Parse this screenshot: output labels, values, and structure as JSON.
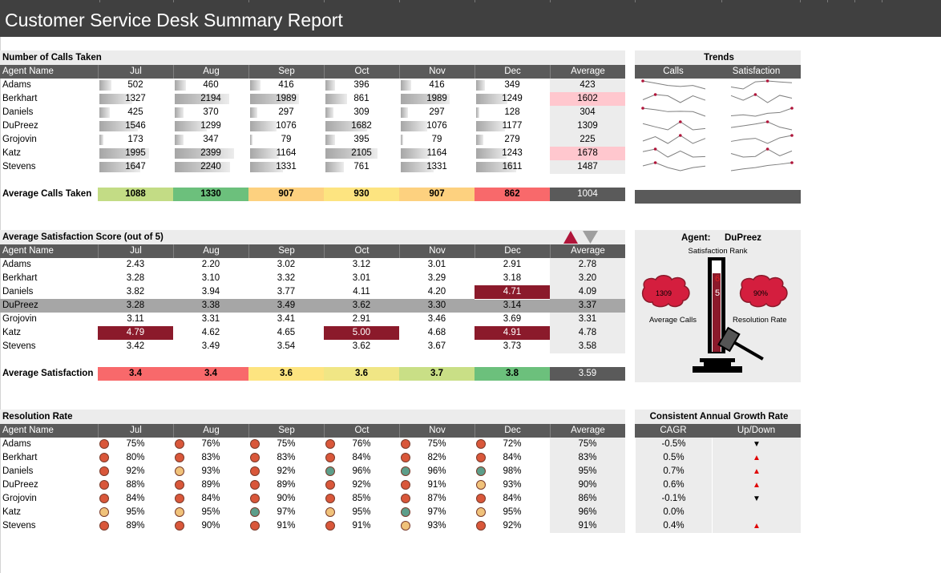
{
  "title": "Customer Service Desk Summary Report",
  "colors": {
    "title_bg": "#404040",
    "header_bg": "#5a5a5a",
    "section_bg": "#ececec",
    "highlight": "#ffc7ce",
    "dark_red": "#8b1a2b",
    "grey_row": "#a6a6a6"
  },
  "agent_header": "Agent Name",
  "months": [
    "Jul",
    "Aug",
    "Sep",
    "Oct",
    "Nov",
    "Dec"
  ],
  "average_label": "Average",
  "agents": [
    "Adams",
    "Berkhart",
    "Daniels",
    "DuPreez",
    "Grojovin",
    "Katz",
    "Stevens"
  ],
  "calls": {
    "title": "Number of Calls Taken",
    "rows": [
      {
        "values": [
          "502",
          "460",
          "416",
          "396",
          "416",
          "349"
        ],
        "avg": "423",
        "hl": false
      },
      {
        "values": [
          "1327",
          "2194",
          "1989",
          "861",
          "1989",
          "1249"
        ],
        "avg": "1602",
        "hl": true
      },
      {
        "values": [
          "425",
          "370",
          "297",
          "309",
          "297",
          "128"
        ],
        "avg": "304",
        "hl": false
      },
      {
        "values": [
          "1546",
          "1299",
          "1076",
          "1682",
          "1076",
          "1177"
        ],
        "avg": "1309",
        "hl": false
      },
      {
        "values": [
          "173",
          "347",
          "79",
          "395",
          "79",
          "279"
        ],
        "avg": "225",
        "hl": false
      },
      {
        "values": [
          "1995",
          "2399",
          "1164",
          "2105",
          "1164",
          "1243"
        ],
        "avg": "1678",
        "hl": true
      },
      {
        "values": [
          "1647",
          "2240",
          "1331",
          "761",
          "1331",
          "1611"
        ],
        "avg": "1487",
        "hl": false
      }
    ],
    "avg_label": "Average Calls Taken",
    "avg_values": [
      "1088",
      "1330",
      "907",
      "930",
      "907",
      "862"
    ],
    "avg_colors": [
      "#c3dc85",
      "#6cc07c",
      "#fdd17f",
      "#fde480",
      "#fdd17f",
      "#f8696b"
    ],
    "avg_total": "1004"
  },
  "trends": {
    "title": "Trends",
    "col_calls": "Calls",
    "col_satisfaction": "Satisfaction"
  },
  "satisfaction": {
    "title": "Average Satisfaction Score (out of 5)",
    "rows": [
      {
        "values": [
          "2.43",
          "2.20",
          "3.02",
          "3.12",
          "3.01",
          "2.91"
        ],
        "avg": "2.78"
      },
      {
        "values": [
          "3.28",
          "3.10",
          "3.32",
          "3.01",
          "3.29",
          "3.18"
        ],
        "avg": "3.20"
      },
      {
        "values": [
          "3.82",
          "3.94",
          "3.77",
          "4.11",
          "4.20",
          "4.71"
        ],
        "avg": "4.09"
      },
      {
        "values": [
          "3.28",
          "3.38",
          "3.49",
          "3.62",
          "3.30",
          "3.14"
        ],
        "avg": "3.37"
      },
      {
        "values": [
          "3.11",
          "3.31",
          "3.41",
          "2.91",
          "3.46",
          "3.69"
        ],
        "avg": "3.31"
      },
      {
        "values": [
          "4.79",
          "4.62",
          "4.65",
          "5.00",
          "4.68",
          "4.91"
        ],
        "avg": "4.78"
      },
      {
        "values": [
          "3.42",
          "3.49",
          "3.54",
          "3.62",
          "3.67",
          "3.73"
        ],
        "avg": "3.58"
      }
    ],
    "avg_label": "Average Satisfaction",
    "avg_values": [
      "3.4",
      "3.4",
      "3.6",
      "3.6",
      "3.7",
      "3.8"
    ],
    "avg_colors": [
      "#f8696b",
      "#f8696b",
      "#fde480",
      "#f0e685",
      "#c9df86",
      "#6cc07c"
    ],
    "avg_total": "3.59"
  },
  "agent_panel": {
    "agent_label": "Agent:",
    "agent_name": "DuPreez",
    "rank_label": "Satisfaction Rank",
    "rank_top": "6",
    "rank_bottom": "5",
    "calls_value": "1309",
    "calls_label": "Average Calls",
    "resolution_value": "90%",
    "resolution_label": "Resolution Rate"
  },
  "resolution": {
    "title": "Resolution Rate",
    "rows": [
      {
        "values": [
          "75%",
          "76%",
          "75%",
          "76%",
          "75%",
          "72%"
        ],
        "avg": "75%"
      },
      {
        "values": [
          "80%",
          "83%",
          "83%",
          "84%",
          "82%",
          "84%"
        ],
        "avg": "83%"
      },
      {
        "values": [
          "92%",
          "93%",
          "92%",
          "96%",
          "96%",
          "98%"
        ],
        "avg": "95%"
      },
      {
        "values": [
          "88%",
          "89%",
          "89%",
          "92%",
          "91%",
          "93%"
        ],
        "avg": "90%"
      },
      {
        "values": [
          "84%",
          "84%",
          "90%",
          "85%",
          "87%",
          "84%"
        ],
        "avg": "86%"
      },
      {
        "values": [
          "95%",
          "95%",
          "97%",
          "95%",
          "97%",
          "95%"
        ],
        "avg": "96%"
      },
      {
        "values": [
          "89%",
          "90%",
          "91%",
          "91%",
          "93%",
          "92%"
        ],
        "avg": "91%"
      }
    ]
  },
  "growth": {
    "title": "Consistent Annual Growth Rate",
    "col_cagr": "CAGR",
    "col_updown": "Up/Down",
    "rows": [
      {
        "cagr": "-0.5%",
        "dir": "▼",
        "color": "#000000"
      },
      {
        "cagr": "0.5%",
        "dir": "▲",
        "color": "#e00000"
      },
      {
        "cagr": "0.7%",
        "dir": "▲",
        "color": "#e00000"
      },
      {
        "cagr": "0.6%",
        "dir": "▲",
        "color": "#e00000"
      },
      {
        "cagr": "-0.1%",
        "dir": "▼",
        "color": "#000000"
      },
      {
        "cagr": "0.0%",
        "dir": "",
        "color": "#000000"
      },
      {
        "cagr": "0.4%",
        "dir": "▲",
        "color": "#e00000"
      }
    ]
  }
}
